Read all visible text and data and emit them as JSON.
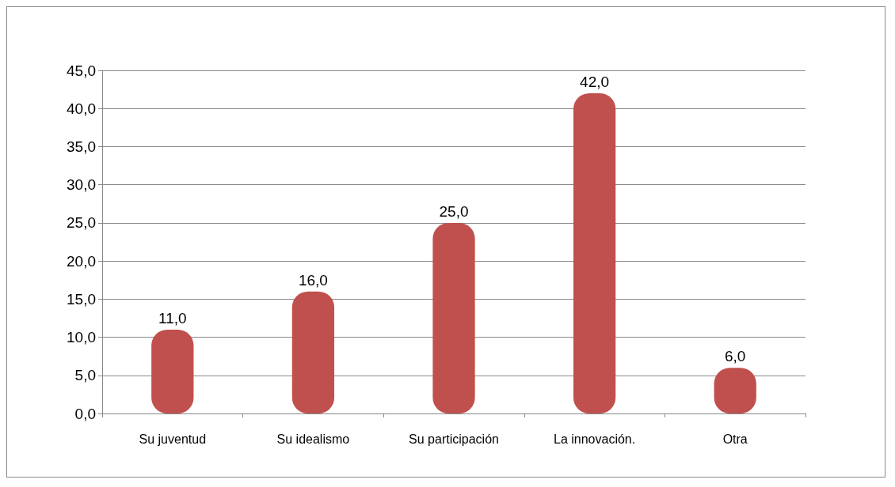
{
  "chart_data": {
    "type": "bar",
    "categories": [
      "Su juventud",
      "Su idealismo",
      "Su participación",
      "La innovación.",
      "Otra"
    ],
    "values": [
      11,
      16,
      25,
      42,
      6
    ],
    "value_labels": [
      "11,0",
      "16,0",
      "25,0",
      "42,0",
      "6,0"
    ],
    "color": "#c0504d",
    "ylim": [
      0,
      45
    ],
    "yticks": [
      {
        "value": 0,
        "label": "0,0"
      },
      {
        "value": 5,
        "label": "5,0"
      },
      {
        "value": 10,
        "label": "10,0"
      },
      {
        "value": 15,
        "label": "15,0"
      },
      {
        "value": 20,
        "label": "20,0"
      },
      {
        "value": 25,
        "label": "25,0"
      },
      {
        "value": 30,
        "label": "30,0"
      },
      {
        "value": 35,
        "label": "35,0"
      },
      {
        "value": 40,
        "label": "40,0"
      },
      {
        "value": 45,
        "label": "45,0"
      }
    ],
    "grid": "y"
  }
}
